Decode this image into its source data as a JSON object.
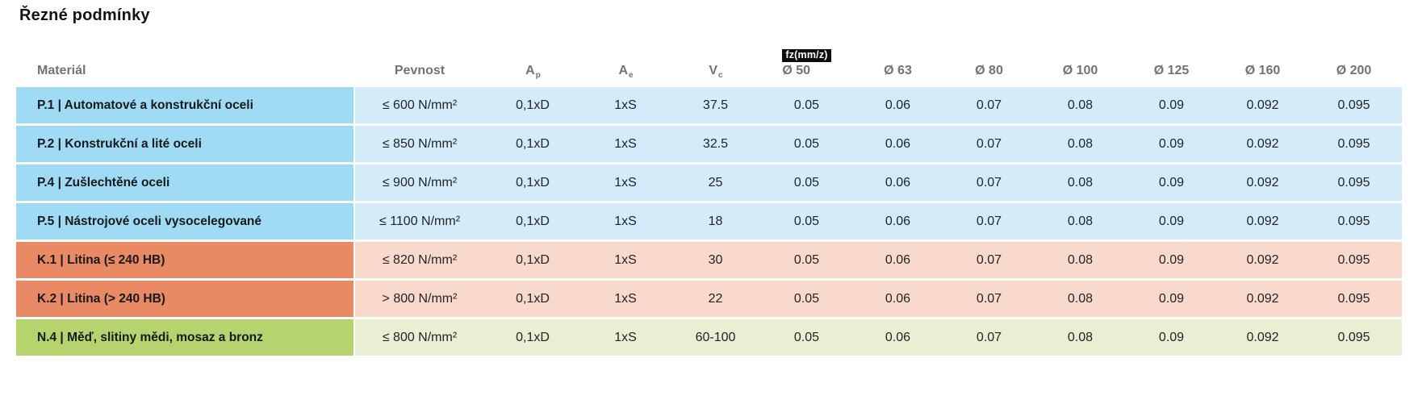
{
  "page": {
    "title": "Řezné podmínky"
  },
  "table": {
    "fz_badge_label": "fz(mm/z)",
    "headers": {
      "material": "Materiál",
      "pevnost": "Pevnost",
      "ap_main": "A",
      "ap_sub": "p",
      "ae_main": "A",
      "ae_sub": "e",
      "vc_main": "V",
      "vc_sub": "c",
      "diameters": [
        "Ø 50",
        "Ø 63",
        "Ø 80",
        "Ø 100",
        "Ø 125",
        "Ø 160",
        "Ø 200"
      ]
    },
    "group_colors": {
      "P": {
        "strong": "#9fdbf4",
        "light": "#d4ecf9"
      },
      "K": {
        "strong": "#e98a64",
        "light": "#f9d9cb"
      },
      "N": {
        "strong": "#b5d46e",
        "light": "#e8efd3"
      }
    },
    "rows": [
      {
        "group": "P",
        "material": "P.1 | Automatové a konstrukční oceli",
        "pevnost": "≤ 600 N/mm²",
        "ap": "0,1xD",
        "ae": "1xS",
        "vc": "37.5",
        "fz": [
          "0.05",
          "0.06",
          "0.07",
          "0.08",
          "0.09",
          "0.092",
          "0.095"
        ]
      },
      {
        "group": "P",
        "material": "P.2 | Konstrukční a lité oceli",
        "pevnost": "≤ 850 N/mm²",
        "ap": "0,1xD",
        "ae": "1xS",
        "vc": "32.5",
        "fz": [
          "0.05",
          "0.06",
          "0.07",
          "0.08",
          "0.09",
          "0.092",
          "0.095"
        ]
      },
      {
        "group": "P",
        "material": "P.4 | Zušlechtěné oceli",
        "pevnost": "≤ 900 N/mm²",
        "ap": "0,1xD",
        "ae": "1xS",
        "vc": "25",
        "fz": [
          "0.05",
          "0.06",
          "0.07",
          "0.08",
          "0.09",
          "0.092",
          "0.095"
        ]
      },
      {
        "group": "P",
        "material": "P.5 | Nástrojové oceli vysocelegované",
        "pevnost": "≤ 1100 N/mm²",
        "ap": "0,1xD",
        "ae": "1xS",
        "vc": "18",
        "fz": [
          "0.05",
          "0.06",
          "0.07",
          "0.08",
          "0.09",
          "0.092",
          "0.095"
        ]
      },
      {
        "group": "K",
        "material": "K.1 | Litina (≤ 240 HB)",
        "pevnost": "≤ 820 N/mm²",
        "ap": "0,1xD",
        "ae": "1xS",
        "vc": "30",
        "fz": [
          "0.05",
          "0.06",
          "0.07",
          "0.08",
          "0.09",
          "0.092",
          "0.095"
        ]
      },
      {
        "group": "K",
        "material": "K.2 | Litina (> 240 HB)",
        "pevnost": "> 800 N/mm²",
        "ap": "0,1xD",
        "ae": "1xS",
        "vc": "22",
        "fz": [
          "0.05",
          "0.06",
          "0.07",
          "0.08",
          "0.09",
          "0.092",
          "0.095"
        ]
      },
      {
        "group": "N",
        "material": "N.4 | Měď, slitiny mědi, mosaz a bronz",
        "pevnost": "≤ 800 N/mm²",
        "ap": "0,1xD",
        "ae": "1xS",
        "vc": "60-100",
        "fz": [
          "0.05",
          "0.06",
          "0.07",
          "0.08",
          "0.09",
          "0.092",
          "0.095"
        ]
      }
    ]
  }
}
